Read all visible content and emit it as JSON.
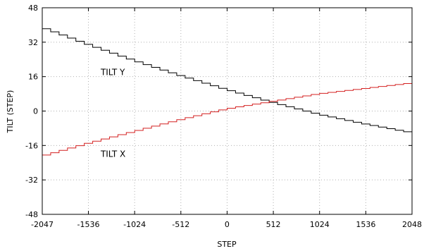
{
  "chart_data": {
    "type": "line",
    "title": "",
    "xlabel": "STEP",
    "ylabel": "TILT  (STEP)",
    "xlim": [
      -2047,
      2048
    ],
    "ylim": [
      -48,
      48
    ],
    "x_ticks": [
      -2047,
      -1536,
      -1024,
      -512,
      0,
      512,
      1024,
      1536,
      2048
    ],
    "y_ticks": [
      -48,
      -32,
      -16,
      0,
      16,
      32,
      48
    ],
    "x_tick_labels": [
      "-2047",
      "-1536",
      "-1024",
      "-512",
      "0",
      "512",
      "1024",
      "1536",
      "2048"
    ],
    "y_tick_labels": [
      "-48",
      "-32",
      "-16",
      "0",
      "16",
      "32",
      "48"
    ],
    "grid": true,
    "step_style": true,
    "series": [
      {
        "name": "TILT Y",
        "color": "#000000",
        "label_anchor": {
          "x": -1400,
          "y": 18
        },
        "x": [
          -2047,
          -1536,
          -1024,
          -512,
          0,
          512,
          1024,
          1536,
          2048
        ],
        "y": [
          39,
          31,
          23.5,
          16.5,
          10,
          4,
          -1.5,
          -6,
          -10
        ]
      },
      {
        "name": "TILT X",
        "color": "#d42020",
        "label_anchor": {
          "x": -1400,
          "y": -20
        },
        "x": [
          -2047,
          -1536,
          -1024,
          -512,
          0,
          512,
          1024,
          1536,
          2048
        ],
        "y": [
          -21,
          -15,
          -9.5,
          -4,
          1,
          4.5,
          8,
          10.5,
          13
        ]
      }
    ]
  }
}
